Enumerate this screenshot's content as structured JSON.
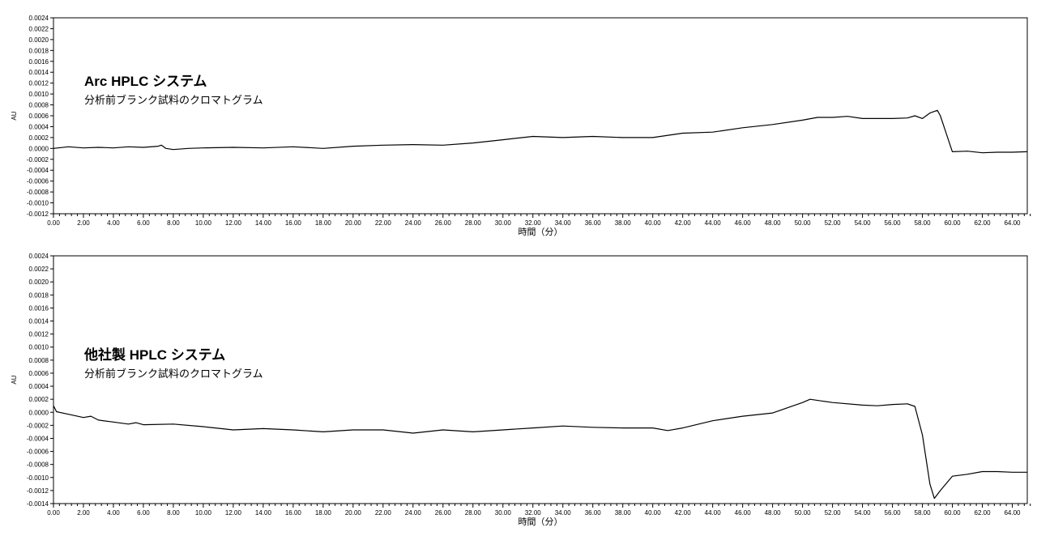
{
  "chart_data": [
    {
      "type": "line",
      "title": "",
      "annotation_title": "Arc HPLC システム",
      "annotation_subtitle": "分析前ブランク試料のクロマトグラム",
      "xlabel": "時間（分）",
      "ylabel": "AU",
      "xlim": [
        0,
        65
      ],
      "ylim": [
        -0.0012,
        0.0024
      ],
      "grid": false,
      "series": [
        {
          "x": [
            0,
            1,
            2,
            3,
            4,
            5,
            6,
            7,
            7.2,
            7.5,
            8,
            9,
            10,
            12,
            14,
            16,
            18,
            20,
            22,
            24,
            26,
            28,
            30,
            32,
            34,
            36,
            38,
            40,
            42,
            44,
            46,
            48,
            50,
            51,
            52,
            53,
            54,
            56,
            57,
            57.5,
            58,
            58.5,
            59,
            59.2,
            59.5,
            60,
            61,
            62,
            63,
            64,
            65
          ],
          "y": [
            0.0,
            3e-05,
            1e-05,
            2e-05,
            1e-05,
            3e-05,
            2e-05,
            4e-05,
            6e-05,
            0.0,
            -2e-05,
            0.0,
            1e-05,
            2e-05,
            1e-05,
            3e-05,
            0.0,
            4e-05,
            6e-05,
            7e-05,
            6e-05,
            0.0001,
            0.00016,
            0.00022,
            0.0002,
            0.00022,
            0.0002,
            0.0002,
            0.00028,
            0.0003,
            0.00038,
            0.00044,
            0.00052,
            0.00057,
            0.00057,
            0.00059,
            0.00055,
            0.00055,
            0.00056,
            0.0006,
            0.00055,
            0.00065,
            0.0007,
            0.0006,
            0.00035,
            -6e-05,
            -5e-05,
            -8e-05,
            -7e-05,
            -7e-05,
            -6e-05
          ]
        }
      ]
    },
    {
      "type": "line",
      "title": "",
      "annotation_title": "他社製 HPLC システム",
      "annotation_subtitle": "分析前ブランク試料のクロマトグラム",
      "xlabel": "時間（分）",
      "ylabel": "AU",
      "xlim": [
        0,
        65
      ],
      "ylim": [
        -0.0014,
        0.0024
      ],
      "grid": false,
      "series": [
        {
          "x": [
            0,
            0.2,
            1,
            2,
            2.5,
            3,
            4,
            5,
            5.5,
            6,
            8,
            10,
            12,
            14,
            16,
            18,
            20,
            22,
            24,
            26,
            28,
            30,
            32,
            34,
            36,
            38,
            40,
            41,
            42,
            44,
            46,
            48,
            50,
            50.5,
            52,
            54,
            55,
            56,
            57,
            57.5,
            58,
            58.5,
            58.8,
            59.2,
            60,
            61,
            62,
            63,
            64,
            65
          ],
          "y": [
            0.0001,
            1e-05,
            -3e-05,
            -8e-05,
            -6e-05,
            -0.00012,
            -0.00015,
            -0.00018,
            -0.00016,
            -0.00019,
            -0.00018,
            -0.00022,
            -0.00027,
            -0.00025,
            -0.00027,
            -0.0003,
            -0.00027,
            -0.00027,
            -0.00032,
            -0.00027,
            -0.0003,
            -0.00027,
            -0.00024,
            -0.00021,
            -0.00023,
            -0.00024,
            -0.00024,
            -0.00028,
            -0.00024,
            -0.00013,
            -6e-05,
            -1e-05,
            0.00015,
            0.0002,
            0.00015,
            0.00011,
            0.0001,
            0.00012,
            0.00013,
            9e-05,
            -0.00035,
            -0.0011,
            -0.00132,
            -0.0012,
            -0.00098,
            -0.00095,
            -0.00091,
            -0.00091,
            -0.00092,
            -0.00092
          ]
        }
      ]
    }
  ]
}
